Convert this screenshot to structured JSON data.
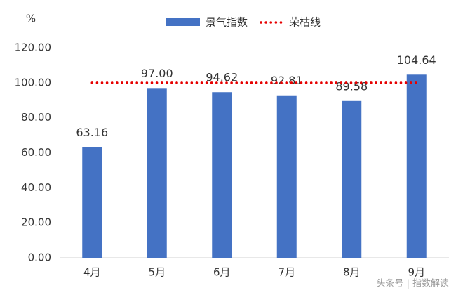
{
  "chart_data": {
    "type": "bar",
    "unit_label": "%",
    "categories": [
      "4月",
      "5月",
      "6月",
      "7月",
      "8月",
      "9月"
    ],
    "series": [
      {
        "name": "景气指数",
        "type": "bar",
        "color": "#4472c4",
        "values": [
          63.16,
          97,
          94.62,
          92.81,
          89.58,
          104.64
        ],
        "value_labels": [
          "63.16",
          "97.00",
          "94.62",
          "92.81",
          "89.58",
          "104.64"
        ]
      },
      {
        "name": "荣枯线",
        "type": "line",
        "line_style": "dotted",
        "color": "#e60000",
        "values": [
          100,
          100,
          100,
          100,
          100,
          100
        ]
      }
    ],
    "ylim": [
      0,
      120
    ],
    "yticks": [
      {
        "value": 0,
        "label": "0.00"
      },
      {
        "value": 20,
        "label": "20.00"
      },
      {
        "value": 40,
        "label": "40.00"
      },
      {
        "value": 60,
        "label": "60.00"
      },
      {
        "value": 80,
        "label": "80.00"
      },
      {
        "value": 100,
        "label": "100.00"
      },
      {
        "value": 120,
        "label": "120.00"
      }
    ],
    "grid": false,
    "legend": "top"
  },
  "watermark": "头条号 | 指数解读"
}
